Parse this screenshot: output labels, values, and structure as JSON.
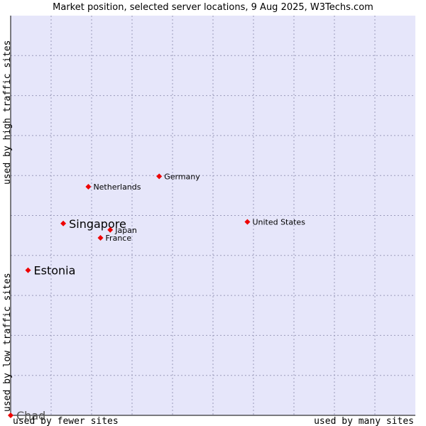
{
  "chart_data": {
    "type": "scatter",
    "title": "Market position, selected server locations, 9 Aug 2025, W3Techs.com",
    "xlabel_left": "used by fewer sites",
    "xlabel_right": "used by many sites",
    "ylabel_top": "used by high traffic sites",
    "ylabel_bottom": "used by low traffic sites",
    "xlim": [
      0,
      100
    ],
    "ylim": [
      0,
      100
    ],
    "grid": true,
    "points": [
      {
        "label": "Chad",
        "x": 0.0,
        "y": 0.0,
        "emphasis": "large-gray"
      },
      {
        "label": "Estonia",
        "x": 4.3,
        "y": 36.3,
        "emphasis": "large"
      },
      {
        "label": "Singapore",
        "x": 13.0,
        "y": 48.0,
        "emphasis": "large"
      },
      {
        "label": "Netherlands",
        "x": 19.2,
        "y": 57.2,
        "emphasis": "normal"
      },
      {
        "label": "Japan",
        "x": 24.6,
        "y": 46.4,
        "emphasis": "normal"
      },
      {
        "label": "France",
        "x": 22.2,
        "y": 44.4,
        "emphasis": "normal"
      },
      {
        "label": "Germany",
        "x": 36.7,
        "y": 59.8,
        "emphasis": "normal"
      },
      {
        "label": "United States",
        "x": 58.5,
        "y": 48.4,
        "emphasis": "normal"
      }
    ]
  },
  "colors": {
    "plot_background": "#e6e6fa",
    "grid": "#9a9aba",
    "axis": "#000000",
    "marker": "#ee0000",
    "text": "#000000",
    "label_gray": "#555555"
  }
}
